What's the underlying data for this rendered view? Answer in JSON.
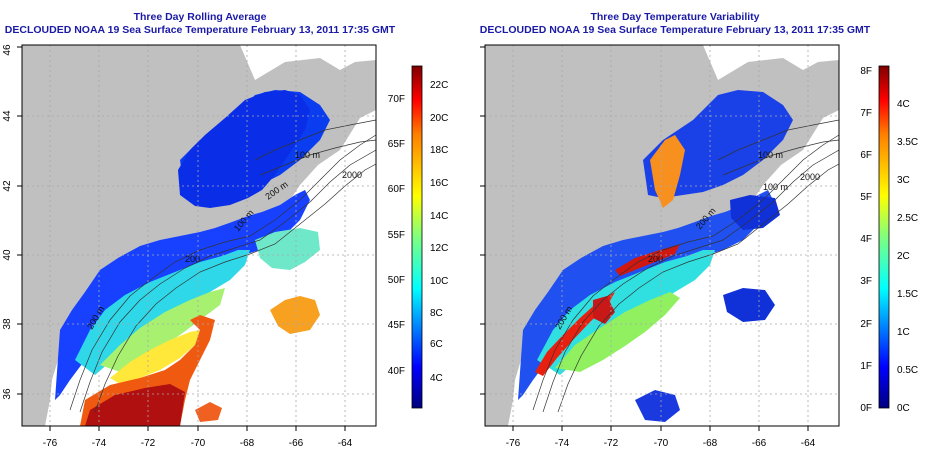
{
  "colors": {
    "land": "#c0c0c0",
    "title": "#1a1aa6",
    "grid": "#a8a8a8",
    "colorbar": [
      "#00007f",
      "#0000ff",
      "#007fff",
      "#00ffff",
      "#7fff7f",
      "#ffff00",
      "#ff7f00",
      "#ff0000",
      "#7f0000"
    ]
  },
  "panels": [
    {
      "title": "Three Day Rolling Average",
      "subtitle": "DECLOUDED NOAA 19 Sea Surface Temperature February 13, 2011 17:35 GMT",
      "colorbar_f_labels": [
        "40F",
        "45F",
        "50F",
        "55F",
        "60F",
        "65F",
        "70F"
      ],
      "colorbar_c_labels": [
        "4C",
        "6C",
        "8C",
        "10C",
        "12C",
        "14C",
        "16C",
        "18C",
        "20C",
        "22C"
      ],
      "contour_labels": [
        "100 m",
        "200 m",
        "2000",
        "100 m",
        "200 m",
        "200 m",
        "200"
      ]
    },
    {
      "title": "Three Day Temperature Variability",
      "subtitle": "DECLOUDED NOAA 19 Sea Surface Temperature February 13, 2011 17:35 GMT",
      "colorbar_f_labels": [
        "0F",
        "1F",
        "2F",
        "3F",
        "4F",
        "5F",
        "6F",
        "7F",
        "8F"
      ],
      "colorbar_c_labels": [
        "0C",
        "0.5C",
        "1C",
        "1.5C",
        "2C",
        "2.5C",
        "3C",
        "3.5C",
        "4C"
      ],
      "contour_labels": [
        "100 m",
        "100 m",
        "2000",
        "200 m",
        "200 m",
        "200"
      ]
    }
  ],
  "map": {
    "lon_ticks": [
      "-76",
      "-74",
      "-72",
      "-70",
      "-68",
      "-66",
      "-64"
    ],
    "lat_ticks": [
      "36",
      "38",
      "40",
      "42",
      "44",
      "46"
    ]
  }
}
